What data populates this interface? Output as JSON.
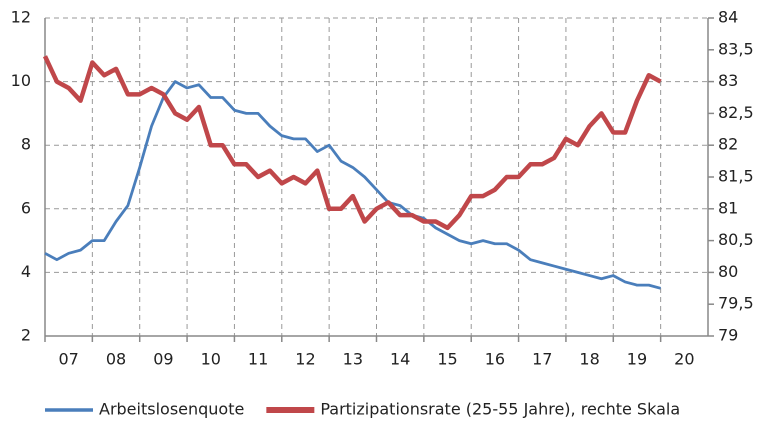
{
  "chart_data": {
    "type": "line",
    "x": [
      2007,
      2007.25,
      2007.5,
      2007.75,
      2008,
      2008.25,
      2008.5,
      2008.75,
      2009,
      2009.25,
      2009.5,
      2009.75,
      2010,
      2010.25,
      2010.5,
      2010.75,
      2011,
      2011.25,
      2011.5,
      2011.75,
      2012,
      2012.25,
      2012.5,
      2012.75,
      2013,
      2013.25,
      2013.5,
      2013.75,
      2014,
      2014.25,
      2014.5,
      2014.75,
      2015,
      2015.25,
      2015.5,
      2015.75,
      2016,
      2016.25,
      2016.5,
      2016.75,
      2017,
      2017.25,
      2017.5,
      2017.75,
      2018,
      2018.25,
      2018.5,
      2018.75,
      2019,
      2019.25,
      2019.5,
      2019.75,
      2020
    ],
    "series": [
      {
        "name": "Arbeitslosenquote",
        "color": "#4a7ebb",
        "values": [
          4.6,
          4.4,
          4.6,
          4.7,
          5.0,
          5.0,
          5.6,
          6.1,
          7.3,
          8.6,
          9.5,
          10.0,
          9.8,
          9.9,
          9.5,
          9.5,
          9.1,
          9.0,
          9.0,
          8.6,
          8.3,
          8.2,
          8.2,
          7.8,
          8.0,
          7.5,
          7.3,
          7.0,
          6.6,
          6.2,
          6.1,
          5.8,
          5.7,
          5.4,
          5.2,
          5.0,
          4.9,
          5.0,
          4.9,
          4.9,
          4.7,
          4.4,
          4.3,
          4.2,
          4.1,
          4.0,
          3.9,
          3.8,
          3.9,
          3.7,
          3.6,
          3.6,
          3.5
        ]
      },
      {
        "name": "Partizipationsrate (25-55 Jahre), rechte Skala",
        "color": "#c0474a",
        "axis": "y2",
        "values": [
          83.4,
          83.0,
          82.9,
          82.7,
          83.3,
          83.1,
          83.2,
          82.8,
          82.8,
          82.9,
          82.8,
          82.5,
          82.4,
          82.6,
          82.0,
          82.0,
          81.7,
          81.7,
          81.5,
          81.6,
          81.4,
          81.5,
          81.4,
          81.6,
          81.0,
          81.0,
          81.2,
          80.8,
          81.0,
          81.1,
          80.9,
          80.9,
          80.8,
          80.8,
          80.7,
          80.9,
          81.2,
          81.2,
          81.3,
          81.5,
          81.5,
          81.7,
          81.7,
          81.8,
          82.1,
          82.0,
          82.3,
          82.5,
          82.2,
          82.2,
          82.7,
          83.1,
          83.0
        ]
      }
    ],
    "xlim": [
      2007,
      2021
    ],
    "xticks": [
      {
        "value": 2007,
        "label": "07"
      },
      {
        "value": 2008,
        "label": "08"
      },
      {
        "value": 2009,
        "label": "09"
      },
      {
        "value": 2010,
        "label": "10"
      },
      {
        "value": 2011,
        "label": "11"
      },
      {
        "value": 2012,
        "label": "12"
      },
      {
        "value": 2013,
        "label": "13"
      },
      {
        "value": 2014,
        "label": "14"
      },
      {
        "value": 2015,
        "label": "15"
      },
      {
        "value": 2016,
        "label": "16"
      },
      {
        "value": 2017,
        "label": "17"
      },
      {
        "value": 2018,
        "label": "18"
      },
      {
        "value": 2019,
        "label": "19"
      },
      {
        "value": 2020,
        "label": "20"
      }
    ],
    "ylim": [
      2,
      12
    ],
    "yticks": [
      2,
      4,
      6,
      8,
      10,
      12
    ],
    "y2lim": [
      79,
      84
    ],
    "y2ticks": [
      79,
      {
        "value": 79.5,
        "label": "79,5"
      },
      80,
      {
        "value": 80.5,
        "label": "80,5"
      },
      81,
      {
        "value": 81.5,
        "label": "81,5"
      },
      82,
      {
        "value": 82.5,
        "label": "82,5"
      },
      83,
      {
        "value": 83.5,
        "label": "83,5"
      },
      84
    ],
    "grid": true,
    "legend": "bottom"
  }
}
